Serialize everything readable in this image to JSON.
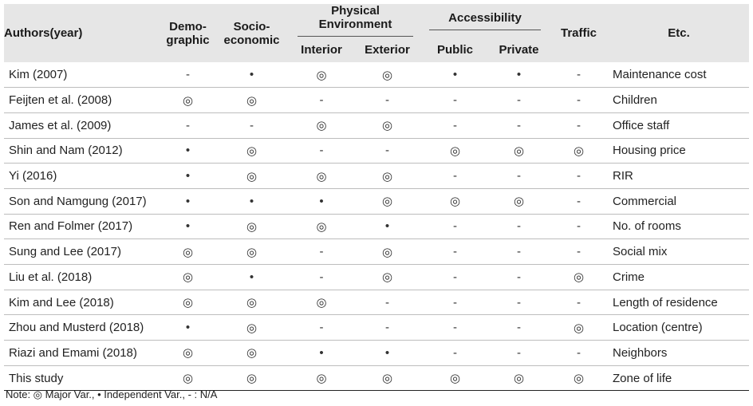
{
  "headers": {
    "authors": "Authors(year)",
    "demographic": "Demo-graphic",
    "demographic_l1": "Demo-",
    "demographic_l2": "graphic",
    "socio_l1": "Socio-",
    "socio_l2": "economic",
    "physical": "Physical Environment",
    "interior": "Interior",
    "exterior": "Exterior",
    "accessibility": "Accessibility",
    "public": "Public",
    "private": "Private",
    "traffic": "Traffic",
    "etc": "Etc."
  },
  "rows": [
    {
      "author": "Kim (2007)",
      "cells": [
        "-",
        "•",
        "◎",
        "◎",
        "•",
        "•",
        "-"
      ],
      "etc": "Maintenance cost"
    },
    {
      "author": "Feijten et al. (2008)",
      "cells": [
        "◎",
        "◎",
        "-",
        "-",
        "-",
        "-",
        "-"
      ],
      "etc": "Children"
    },
    {
      "author": "James et al. (2009)",
      "cells": [
        "-",
        "-",
        "◎",
        "◎",
        "-",
        "-",
        "-"
      ],
      "etc": "Office staff"
    },
    {
      "author": "Shin and Nam (2012)",
      "cells": [
        "•",
        "◎",
        "-",
        "-",
        "◎",
        "◎",
        "◎"
      ],
      "etc": "Housing price"
    },
    {
      "author": "Yi (2016)",
      "cells": [
        "•",
        "◎",
        "◎",
        "◎",
        "-",
        "-",
        "-"
      ],
      "etc": "RIR"
    },
    {
      "author": "Son and Namgung (2017)",
      "cells": [
        "•",
        "•",
        "•",
        "◎",
        "◎",
        "◎",
        "-"
      ],
      "etc": "Commercial"
    },
    {
      "author": "Ren and Folmer (2017)",
      "cells": [
        "•",
        "◎",
        "◎",
        "•",
        "-",
        "-",
        "-"
      ],
      "etc": "No. of rooms"
    },
    {
      "author": "Sung and Lee (2017)",
      "cells": [
        "◎",
        "◎",
        "-",
        "◎",
        "-",
        "-",
        "-"
      ],
      "etc": "Social mix"
    },
    {
      "author": "Liu et al. (2018)",
      "cells": [
        "◎",
        "•",
        "-",
        "◎",
        "-",
        "-",
        "◎"
      ],
      "etc": "Crime"
    },
    {
      "author": "Kim and Lee (2018)",
      "cells": [
        "◎",
        "◎",
        "◎",
        "-",
        "-",
        "-",
        "-"
      ],
      "etc": "Length of residence"
    },
    {
      "author": "Zhou and Musterd (2018)",
      "cells": [
        "•",
        "◎",
        "-",
        "-",
        "-",
        "-",
        "◎"
      ],
      "etc": "Location (centre)"
    },
    {
      "author": "Riazi and Emami (2018)",
      "cells": [
        "◎",
        "◎",
        "•",
        "•",
        "-",
        "-",
        "-"
      ],
      "etc": "Neighbors"
    },
    {
      "author": "This study",
      "cells": [
        "◎",
        "◎",
        "◎",
        "◎",
        "◎",
        "◎",
        "◎"
      ],
      "etc": "Zone of life"
    }
  ],
  "note": "Note: ◎ Major Var., • Independent Var., - : N/A"
}
